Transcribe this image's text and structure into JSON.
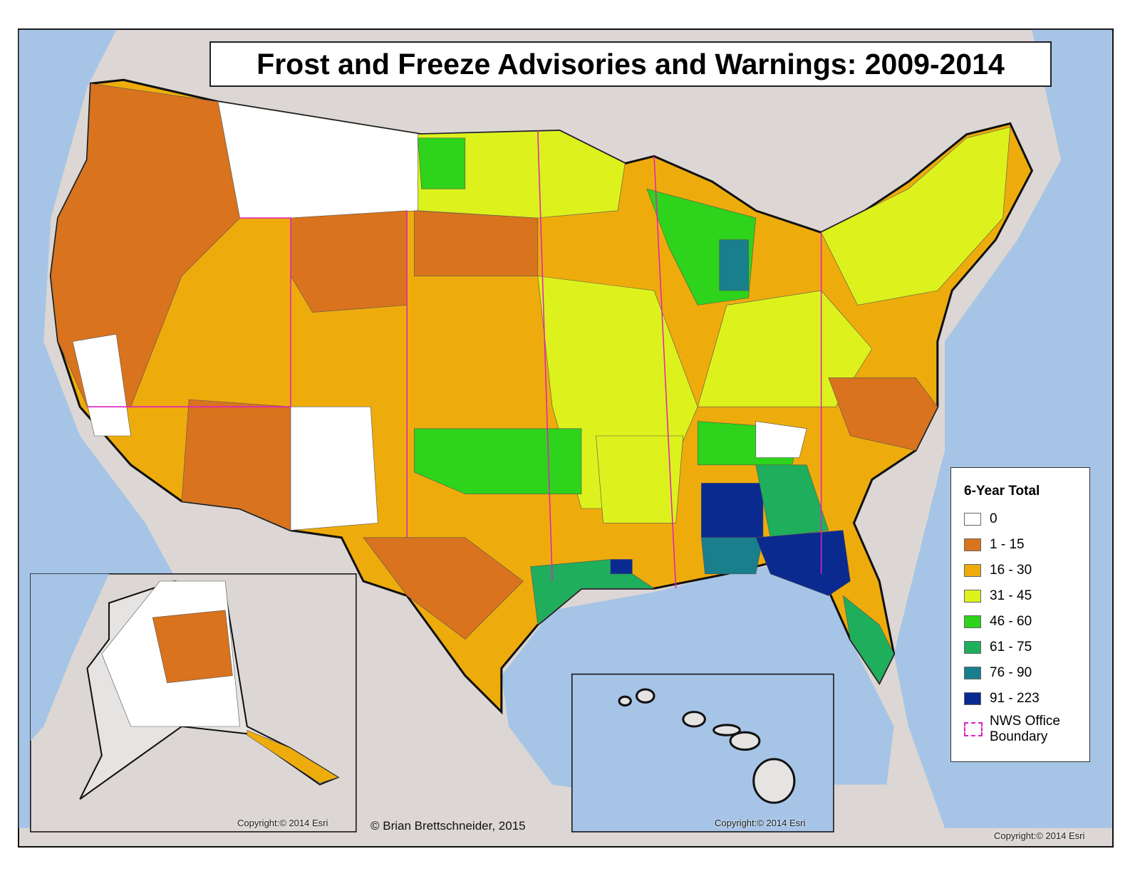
{
  "title": "Frost and Freeze Advisories and Warnings: 2009-2014",
  "legend": {
    "title": "6-Year Total",
    "items": [
      {
        "label": "0",
        "color": "#ffffff"
      },
      {
        "label": "1 - 15",
        "color": "#d9731e"
      },
      {
        "label": "16 - 30",
        "color": "#eeac0c"
      },
      {
        "label": "31 - 45",
        "color": "#ddf21c"
      },
      {
        "label": "46 - 60",
        "color": "#2ed31c"
      },
      {
        "label": "61 - 75",
        "color": "#1fae5c"
      },
      {
        "label": "76 - 90",
        "color": "#1a7f8c"
      },
      {
        "label": "91 - 223",
        "color": "#0a2a8f"
      }
    ],
    "boundary": {
      "label": "NWS Office Boundary",
      "color": "#e020c0"
    }
  },
  "credits": {
    "author": "© Brian Brettschneider, 2015",
    "copyrights": [
      "Copyright:© 2014 Esri",
      "Copyright:© 2014 Esri",
      "Copyright:© 2014 Esri"
    ]
  }
}
